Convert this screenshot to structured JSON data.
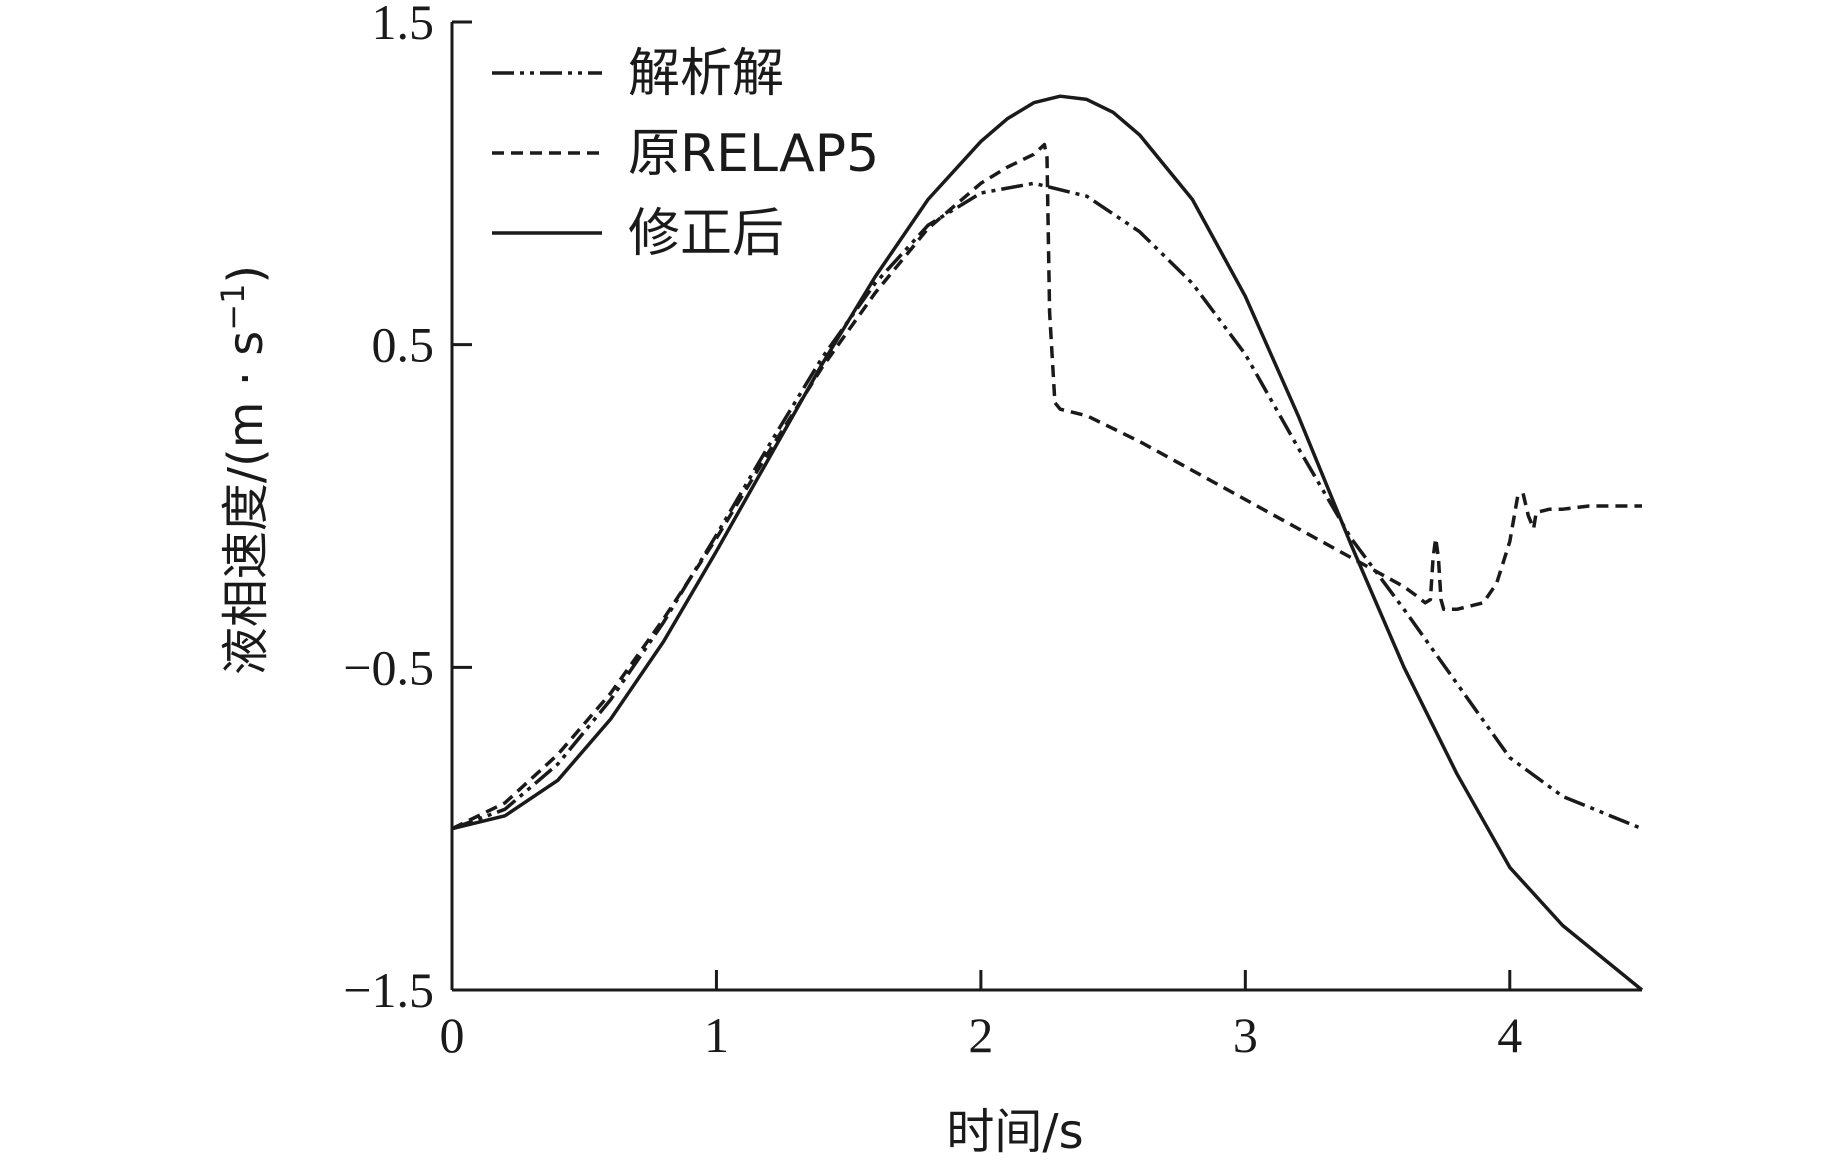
{
  "chart_data": {
    "type": "line",
    "xlabel": "时间/s",
    "ylabel_main": "液相速度/(m · s",
    "ylabel_sup": "−1",
    "ylabel_close": ")",
    "xlim": [
      0,
      4.5
    ],
    "ylim": [
      -1.5,
      1.5
    ],
    "x_ticks": [
      {
        "value": 0,
        "label": "0"
      },
      {
        "value": 1,
        "label": "1"
      },
      {
        "value": 2,
        "label": "2"
      },
      {
        "value": 3,
        "label": "3"
      },
      {
        "value": 4,
        "label": "4"
      }
    ],
    "y_ticks": [
      {
        "value": 1.5,
        "label": "1.5"
      },
      {
        "value": 0.5,
        "label": "0.5"
      },
      {
        "value": -0.5,
        "label": "−0.5"
      },
      {
        "value": -1.5,
        "label": "−1.5"
      }
    ],
    "grid": false,
    "legend_position": "top-left",
    "series": [
      {
        "name": "解析解",
        "style": "dash-dot-dot",
        "color": "#1a1a1a",
        "x": [
          0,
          0.2,
          0.4,
          0.6,
          0.8,
          1.0,
          1.2,
          1.4,
          1.6,
          1.8,
          2.0,
          2.2,
          2.4,
          2.6,
          2.8,
          3.0,
          3.2,
          3.4,
          3.6,
          3.8,
          4.0,
          4.2,
          4.5
        ],
        "y": [
          -1.0,
          -0.94,
          -0.8,
          -0.6,
          -0.36,
          -0.09,
          0.19,
          0.46,
          0.69,
          0.87,
          0.97,
          1.0,
          0.96,
          0.85,
          0.69,
          0.47,
          0.18,
          -0.1,
          -0.32,
          -0.55,
          -0.78,
          -0.9,
          -1.0
        ]
      },
      {
        "name": "原RELAP5",
        "style": "dashed",
        "color": "#1a1a1a",
        "x": [
          0,
          0.2,
          0.4,
          0.6,
          0.8,
          1.0,
          1.2,
          1.4,
          1.6,
          1.8,
          2.0,
          2.1,
          2.2,
          2.24,
          2.25,
          2.26,
          2.28,
          2.3,
          2.4,
          2.6,
          2.8,
          3.0,
          3.2,
          3.4,
          3.6,
          3.65,
          3.68,
          3.7,
          3.71,
          3.72,
          3.73,
          3.74,
          3.75,
          3.8,
          3.9,
          3.95,
          4.0,
          4.03,
          4.05,
          4.07,
          4.09,
          4.1,
          4.15,
          4.2,
          4.3,
          4.5
        ],
        "y": [
          -1.0,
          -0.92,
          -0.77,
          -0.58,
          -0.35,
          -0.1,
          0.17,
          0.43,
          0.66,
          0.86,
          1.0,
          1.05,
          1.09,
          1.12,
          1.08,
          0.6,
          0.32,
          0.3,
          0.28,
          0.2,
          0.11,
          0.02,
          -0.07,
          -0.16,
          -0.25,
          -0.28,
          -0.3,
          -0.29,
          -0.16,
          -0.1,
          -0.16,
          -0.29,
          -0.32,
          -0.32,
          -0.3,
          -0.24,
          -0.11,
          0.03,
          0.04,
          -0.03,
          -0.07,
          -0.02,
          -0.01,
          -0.01,
          0.0,
          0.0
        ]
      },
      {
        "name": "修正后",
        "style": "solid",
        "color": "#1a1a1a",
        "x": [
          0,
          0.2,
          0.4,
          0.6,
          0.8,
          1.0,
          1.2,
          1.4,
          1.6,
          1.8,
          2.0,
          2.1,
          2.2,
          2.3,
          2.4,
          2.5,
          2.6,
          2.8,
          3.0,
          3.2,
          3.4,
          3.6,
          3.8,
          4.0,
          4.2,
          4.5
        ],
        "y": [
          -1.0,
          -0.96,
          -0.85,
          -0.66,
          -0.42,
          -0.14,
          0.15,
          0.44,
          0.71,
          0.95,
          1.13,
          1.2,
          1.25,
          1.27,
          1.26,
          1.22,
          1.15,
          0.95,
          0.65,
          0.28,
          -0.12,
          -0.5,
          -0.83,
          -1.12,
          -1.3,
          -1.5
        ]
      }
    ]
  }
}
